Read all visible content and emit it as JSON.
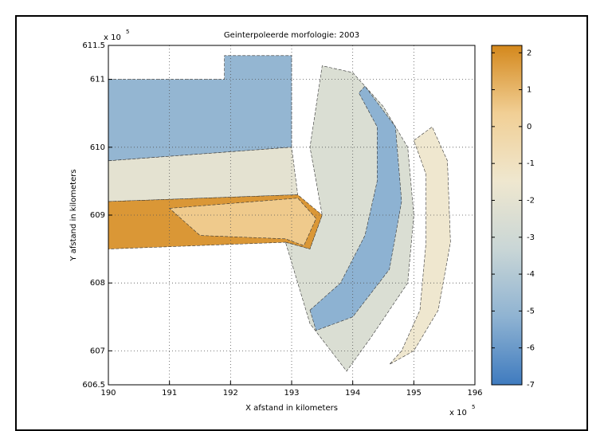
{
  "chart_data": {
    "type": "map",
    "title": "Geinterpoleerde morfologie: 2003",
    "xlabel": "X afstand in kilometers",
    "ylabel": "Y afstand in kilometers",
    "exponent_base": "x 10",
    "exponent": "5",
    "xlim": [
      190,
      196
    ],
    "xticks": [
      190,
      191,
      192,
      193,
      194,
      195,
      196
    ],
    "ylim": [
      606.5,
      611.5
    ],
    "yticks": [
      606.5,
      607,
      608,
      609,
      610,
      611,
      611.5
    ],
    "grid": true,
    "clim": [
      -7,
      2.2
    ],
    "cticks": [
      2,
      1,
      0,
      -1,
      -2,
      -3,
      -4,
      -5,
      -6,
      -7
    ],
    "colormap": [
      "#3f7bbf",
      "#8fb3d2",
      "#c9d6d6",
      "#efe7cf",
      "#f1cf95",
      "#d4881c"
    ],
    "regions": [
      {
        "value": -5,
        "x": [
          190,
          191.9,
          191.9,
          193.0,
          193.0,
          190
        ],
        "y": [
          611.0,
          611.0,
          611.35,
          611.35,
          610.0,
          609.8
        ]
      },
      {
        "value": -2,
        "x": [
          190,
          193.0,
          193.1,
          190
        ],
        "y": [
          609.8,
          610.0,
          609.3,
          609.2
        ]
      },
      {
        "value": 1.8,
        "x": [
          190,
          193.1,
          193.5,
          193.3,
          192.9,
          190
        ],
        "y": [
          609.2,
          609.3,
          609.0,
          608.5,
          608.6,
          608.5
        ]
      },
      {
        "value": 0.5,
        "x": [
          191.0,
          193.1,
          193.4,
          193.2,
          192.9,
          191.5
        ],
        "y": [
          609.1,
          609.25,
          608.95,
          608.55,
          608.65,
          608.7
        ]
      },
      {
        "value": -2.5,
        "x": [
          192.9,
          193.3,
          193.5,
          193.3,
          193.5,
          194.0,
          194.5,
          194.9,
          195.0,
          194.9,
          194.3,
          193.9,
          193.3
        ],
        "y": [
          608.6,
          608.5,
          609.0,
          610.0,
          611.2,
          611.1,
          610.6,
          610.0,
          609.0,
          608.0,
          607.2,
          606.7,
          607.4
        ]
      },
      {
        "value": -5.2,
        "x": [
          193.3,
          193.8,
          194.2,
          194.4,
          194.4,
          194.1,
          194.2,
          194.7,
          194.8,
          194.6,
          194.0,
          193.4
        ],
        "y": [
          607.6,
          608.0,
          608.7,
          609.5,
          610.3,
          610.8,
          610.9,
          610.3,
          609.2,
          608.2,
          607.5,
          607.3
        ]
      },
      {
        "value": -1.5,
        "x": [
          195.0,
          195.3,
          195.55,
          195.6,
          195.4,
          195.0,
          194.6,
          194.8,
          195.1,
          195.2,
          195.2
        ],
        "y": [
          610.1,
          610.3,
          609.8,
          608.6,
          607.6,
          607.0,
          606.8,
          607.0,
          607.6,
          608.6,
          609.6
        ]
      }
    ]
  }
}
